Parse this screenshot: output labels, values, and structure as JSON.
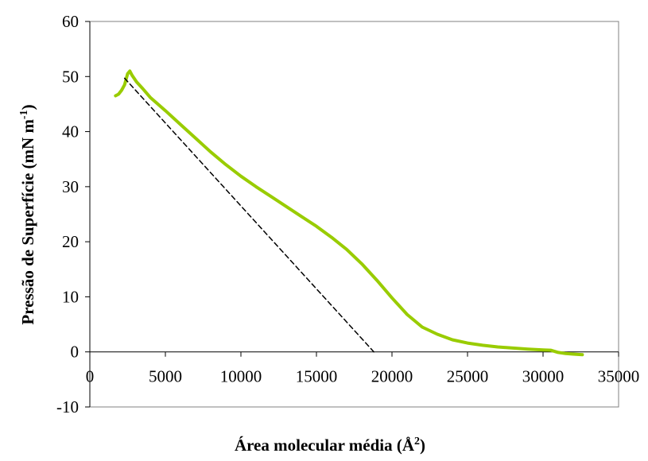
{
  "chart_data": {
    "type": "line",
    "xlabel": "Área molecular média (Å",
    "xlabel_sup": "2",
    "xlabel_end": ")",
    "ylabel": "Pressão de Superfície (mN m",
    "ylabel_sup": "-1",
    "ylabel_end": ")",
    "xlim": [
      0,
      35000
    ],
    "ylim": [
      -10,
      60
    ],
    "x_ticks": [
      0,
      5000,
      10000,
      15000,
      20000,
      25000,
      30000,
      35000
    ],
    "y_ticks": [
      -10,
      0,
      10,
      20,
      30,
      40,
      50,
      60
    ],
    "grid": false,
    "legend": "none",
    "series": [
      {
        "color": "#99cc00",
        "style": "solid",
        "points": [
          [
            1700,
            46.5
          ],
          [
            1900,
            46.8
          ],
          [
            2100,
            47.5
          ],
          [
            2300,
            48.5
          ],
          [
            2500,
            50.5
          ],
          [
            2650,
            51.0
          ],
          [
            2800,
            50.2
          ],
          [
            3100,
            49.0
          ],
          [
            3500,
            47.8
          ],
          [
            4000,
            46.2
          ],
          [
            5000,
            43.8
          ],
          [
            6000,
            41.3
          ],
          [
            7000,
            38.8
          ],
          [
            8000,
            36.3
          ],
          [
            9000,
            34.0
          ],
          [
            10000,
            31.9
          ],
          [
            11000,
            30.0
          ],
          [
            12000,
            28.2
          ],
          [
            13000,
            26.4
          ],
          [
            14000,
            24.6
          ],
          [
            15000,
            22.8
          ],
          [
            16000,
            20.8
          ],
          [
            17000,
            18.6
          ],
          [
            18000,
            16.0
          ],
          [
            19000,
            13.0
          ],
          [
            20000,
            9.8
          ],
          [
            21000,
            6.8
          ],
          [
            22000,
            4.5
          ],
          [
            23000,
            3.2
          ],
          [
            24000,
            2.2
          ],
          [
            25000,
            1.6
          ],
          [
            26000,
            1.2
          ],
          [
            27000,
            0.9
          ],
          [
            28000,
            0.7
          ],
          [
            29000,
            0.5
          ],
          [
            30000,
            0.35
          ],
          [
            30500,
            0.3
          ],
          [
            31000,
            -0.1
          ],
          [
            31500,
            -0.3
          ],
          [
            32000,
            -0.4
          ],
          [
            32600,
            -0.5
          ]
        ]
      },
      {
        "color": "#000000",
        "style": "dashed",
        "points": [
          [
            2300,
            49.7
          ],
          [
            18800,
            0
          ]
        ]
      }
    ]
  }
}
